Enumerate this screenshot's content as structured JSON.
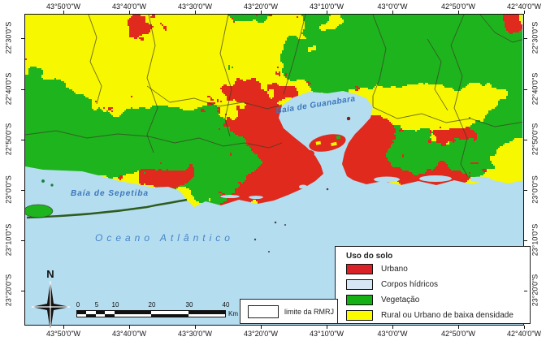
{
  "axes": {
    "lon": [
      "43°50'0\"W",
      "43°40'0\"W",
      "43°30'0\"W",
      "43°20'0\"W",
      "43°10'0\"W",
      "43°0'0\"W",
      "42°50'0\"W",
      "42°40'0\"W"
    ],
    "lat": [
      "22°30'0\"S",
      "22°40'0\"S",
      "22°50'0\"S",
      "23°0'0\"S",
      "23°10'0\"S",
      "23°20'0\"S"
    ]
  },
  "map_labels": {
    "guanabara_bay": "Baía de Guanabara",
    "sepetiba_bay": "Baía de Sepetiba",
    "atlantic_ocean": "Oceano Atlântico"
  },
  "legend": {
    "title": "Uso do solo",
    "items": [
      {
        "label": "Urbano",
        "color": "#da2127"
      },
      {
        "label": "Corpos hídricos",
        "color": "#d6e6f5"
      },
      {
        "label": "Vegetação",
        "color": "#14b014"
      },
      {
        "label": "Rural ou Urbano de baixa densidade",
        "color": "#fbfb00"
      }
    ]
  },
  "boundary_legend": {
    "label": "limite da RMRJ",
    "swatch_color": "#ffffff"
  },
  "scalebar": {
    "tick_labels": [
      "0",
      "5",
      "10",
      "20",
      "30",
      "40"
    ],
    "unit": "Km"
  },
  "compass": {
    "label": "N"
  },
  "map_colors": {
    "water": "#b5ddf0",
    "urban": "#df2a1d",
    "vegetation": "#1eb41e",
    "rural": "#f7f700",
    "boundary": "#3d3d25",
    "label_text": "#3b76bb"
  }
}
